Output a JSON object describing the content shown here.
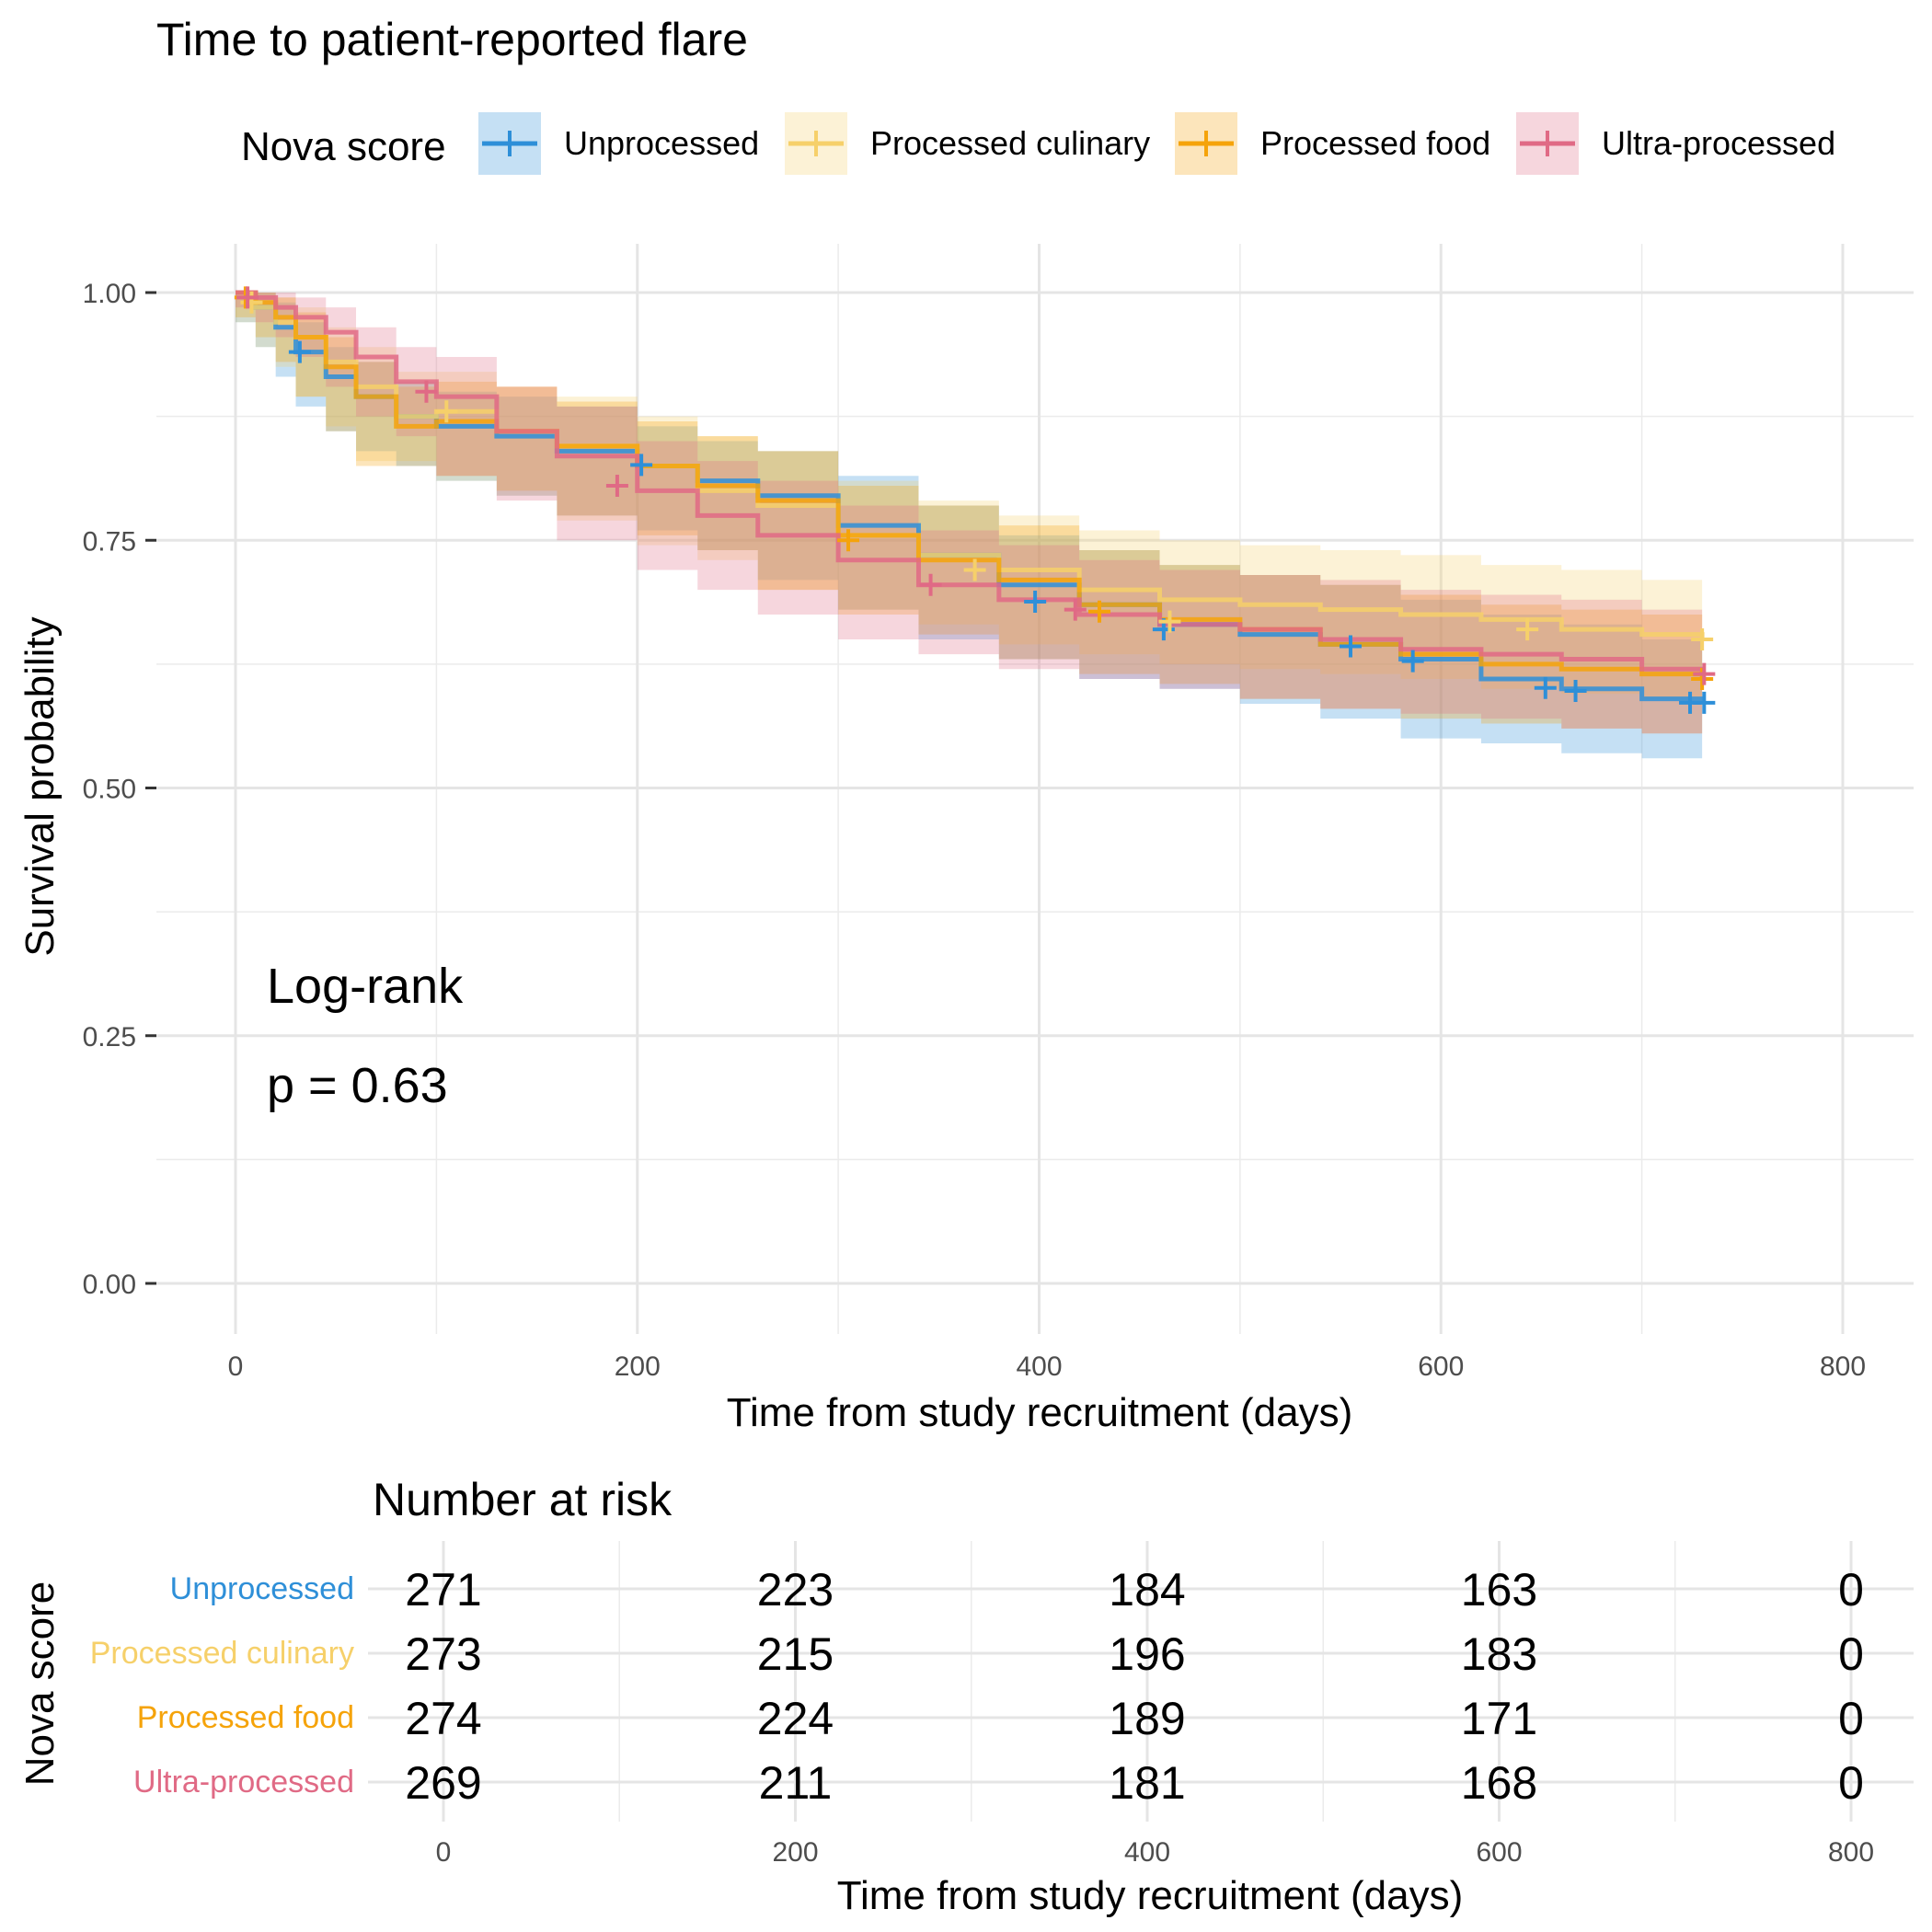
{
  "chart_data": [
    {
      "type": "line",
      "subtype": "kaplan-meier",
      "title": "Time to patient-reported flare",
      "xlabel": "Time from study recruitment (days)",
      "ylabel": "Survival probability",
      "xlim": [
        0,
        800
      ],
      "ylim": [
        0,
        1
      ],
      "x_ticks": [
        0,
        200,
        400,
        600,
        800
      ],
      "x_tick_labels": [
        "0",
        "200",
        "400",
        "600",
        "800"
      ],
      "y_ticks": [
        0,
        0.25,
        0.5,
        0.75,
        1
      ],
      "y_tick_labels": [
        "0.00",
        "0.25",
        "0.50",
        "0.75",
        "1.00"
      ],
      "grid": true,
      "legend": {
        "title": "Nova score",
        "position": "top"
      },
      "annotation": {
        "line1": "Log-rank",
        "line2": "p = 0.63"
      },
      "series": [
        {
          "name": "Unprocessed",
          "color": "#2E8FD8",
          "x": [
            0,
            10,
            20,
            30,
            45,
            60,
            80,
            100,
            130,
            160,
            200,
            230,
            260,
            300,
            340,
            380,
            420,
            460,
            500,
            540,
            580,
            620,
            660,
            700,
            730
          ],
          "y": [
            1.0,
            0.985,
            0.965,
            0.94,
            0.915,
            0.895,
            0.875,
            0.865,
            0.855,
            0.84,
            0.825,
            0.81,
            0.795,
            0.765,
            0.735,
            0.705,
            0.685,
            0.665,
            0.655,
            0.645,
            0.63,
            0.61,
            0.6,
            0.59,
            0.585
          ],
          "lower": [
            1.0,
            0.97,
            0.945,
            0.915,
            0.885,
            0.86,
            0.84,
            0.825,
            0.81,
            0.795,
            0.775,
            0.76,
            0.74,
            0.71,
            0.68,
            0.65,
            0.63,
            0.61,
            0.6,
            0.585,
            0.57,
            0.55,
            0.545,
            0.535,
            0.53
          ],
          "upper": [
            1.0,
            1.0,
            0.99,
            0.97,
            0.945,
            0.93,
            0.91,
            0.9,
            0.895,
            0.885,
            0.865,
            0.85,
            0.84,
            0.815,
            0.785,
            0.755,
            0.74,
            0.725,
            0.715,
            0.705,
            0.69,
            0.675,
            0.665,
            0.65,
            0.645
          ],
          "censor_x": [
            32,
            202,
            398,
            462,
            555,
            586,
            652,
            667,
            724,
            731
          ],
          "censor_y": [
            0.94,
            0.826,
            0.688,
            0.66,
            0.643,
            0.628,
            0.601,
            0.598,
            0.586,
            0.586
          ]
        },
        {
          "name": "Processed culinary",
          "color": "#F6D06A",
          "x": [
            0,
            10,
            20,
            30,
            45,
            60,
            80,
            100,
            130,
            160,
            200,
            230,
            260,
            300,
            340,
            380,
            420,
            460,
            500,
            540,
            580,
            620,
            660,
            700,
            730
          ],
          "y": [
            1.0,
            0.985,
            0.97,
            0.955,
            0.93,
            0.905,
            0.875,
            0.88,
            0.86,
            0.845,
            0.825,
            0.8,
            0.785,
            0.755,
            0.735,
            0.72,
            0.7,
            0.69,
            0.685,
            0.68,
            0.675,
            0.67,
            0.66,
            0.655,
            0.65
          ],
          "lower": [
            1.0,
            0.97,
            0.945,
            0.925,
            0.895,
            0.865,
            0.83,
            0.83,
            0.81,
            0.795,
            0.77,
            0.745,
            0.73,
            0.7,
            0.68,
            0.665,
            0.645,
            0.635,
            0.625,
            0.62,
            0.615,
            0.61,
            0.6,
            0.595,
            0.59
          ],
          "upper": [
            1.0,
            1.0,
            0.995,
            0.985,
            0.965,
            0.945,
            0.92,
            0.92,
            0.905,
            0.895,
            0.875,
            0.855,
            0.84,
            0.81,
            0.79,
            0.775,
            0.76,
            0.75,
            0.745,
            0.74,
            0.735,
            0.725,
            0.72,
            0.71,
            0.705
          ],
          "censor_x": [
            8,
            105,
            368,
            465,
            643,
            730
          ],
          "censor_y": [
            0.99,
            0.88,
            0.72,
            0.668,
            0.66,
            0.65
          ]
        },
        {
          "name": "Processed food",
          "color": "#F5A30A",
          "x": [
            0,
            10,
            20,
            30,
            45,
            60,
            80,
            100,
            130,
            160,
            200,
            230,
            260,
            300,
            340,
            380,
            420,
            460,
            500,
            540,
            580,
            620,
            660,
            700,
            730
          ],
          "y": [
            1.0,
            0.99,
            0.975,
            0.955,
            0.925,
            0.895,
            0.865,
            0.87,
            0.86,
            0.845,
            0.825,
            0.805,
            0.79,
            0.755,
            0.73,
            0.71,
            0.685,
            0.67,
            0.66,
            0.645,
            0.635,
            0.625,
            0.62,
            0.615,
            0.61
          ],
          "lower": [
            1.0,
            0.975,
            0.955,
            0.93,
            0.895,
            0.86,
            0.825,
            0.825,
            0.815,
            0.8,
            0.775,
            0.755,
            0.74,
            0.7,
            0.675,
            0.655,
            0.63,
            0.615,
            0.605,
            0.59,
            0.58,
            0.57,
            0.565,
            0.56,
            0.555
          ],
          "upper": [
            1.0,
            1.0,
            0.995,
            0.98,
            0.955,
            0.93,
            0.905,
            0.91,
            0.905,
            0.89,
            0.87,
            0.855,
            0.84,
            0.805,
            0.785,
            0.765,
            0.74,
            0.725,
            0.715,
            0.705,
            0.695,
            0.685,
            0.68,
            0.675,
            0.67
          ],
          "censor_x": [
            5,
            305,
            430,
            730
          ],
          "censor_y": [
            0.995,
            0.75,
            0.678,
            0.61
          ]
        },
        {
          "name": "Ultra-processed",
          "color": "#E06A85",
          "x": [
            0,
            10,
            20,
            30,
            45,
            60,
            80,
            100,
            130,
            160,
            200,
            230,
            260,
            300,
            340,
            380,
            420,
            460,
            500,
            540,
            580,
            620,
            660,
            700,
            730
          ],
          "y": [
            1.0,
            0.995,
            0.985,
            0.975,
            0.96,
            0.935,
            0.91,
            0.895,
            0.86,
            0.835,
            0.8,
            0.775,
            0.755,
            0.73,
            0.705,
            0.69,
            0.675,
            0.665,
            0.66,
            0.65,
            0.64,
            0.635,
            0.63,
            0.62,
            0.615
          ],
          "lower": [
            1.0,
            0.985,
            0.97,
            0.955,
            0.935,
            0.905,
            0.875,
            0.855,
            0.815,
            0.79,
            0.75,
            0.72,
            0.7,
            0.675,
            0.65,
            0.635,
            0.62,
            0.61,
            0.6,
            0.59,
            0.58,
            0.575,
            0.57,
            0.56,
            0.555
          ],
          "upper": [
            1.0,
            1.0,
            1.0,
            0.995,
            0.985,
            0.965,
            0.945,
            0.935,
            0.905,
            0.885,
            0.85,
            0.83,
            0.81,
            0.785,
            0.76,
            0.745,
            0.73,
            0.72,
            0.715,
            0.71,
            0.7,
            0.695,
            0.69,
            0.68,
            0.675
          ],
          "censor_x": [
            6,
            95,
            190,
            346,
            418,
            731
          ],
          "censor_y": [
            0.995,
            0.9,
            0.805,
            0.705,
            0.68,
            0.615
          ]
        }
      ]
    },
    {
      "type": "table",
      "title": "Number at risk",
      "ylabel": "Nova score",
      "xlabel": "Time from study recruitment (days)",
      "x_ticks": [
        0,
        200,
        400,
        600,
        800
      ],
      "x_tick_labels": [
        "0",
        "200",
        "400",
        "600",
        "800"
      ],
      "rows": [
        {
          "name": "Unprocessed",
          "color": "#2E8FD8",
          "values": [
            "271",
            "223",
            "184",
            "163",
            "0"
          ]
        },
        {
          "name": "Processed culinary",
          "color": "#F6D06A",
          "values": [
            "273",
            "215",
            "196",
            "183",
            "0"
          ]
        },
        {
          "name": "Processed food",
          "color": "#F5A30A",
          "values": [
            "274",
            "224",
            "189",
            "171",
            "0"
          ]
        },
        {
          "name": "Ultra-processed",
          "color": "#E06A85",
          "values": [
            "269",
            "211",
            "181",
            "168",
            "0"
          ]
        }
      ]
    }
  ]
}
